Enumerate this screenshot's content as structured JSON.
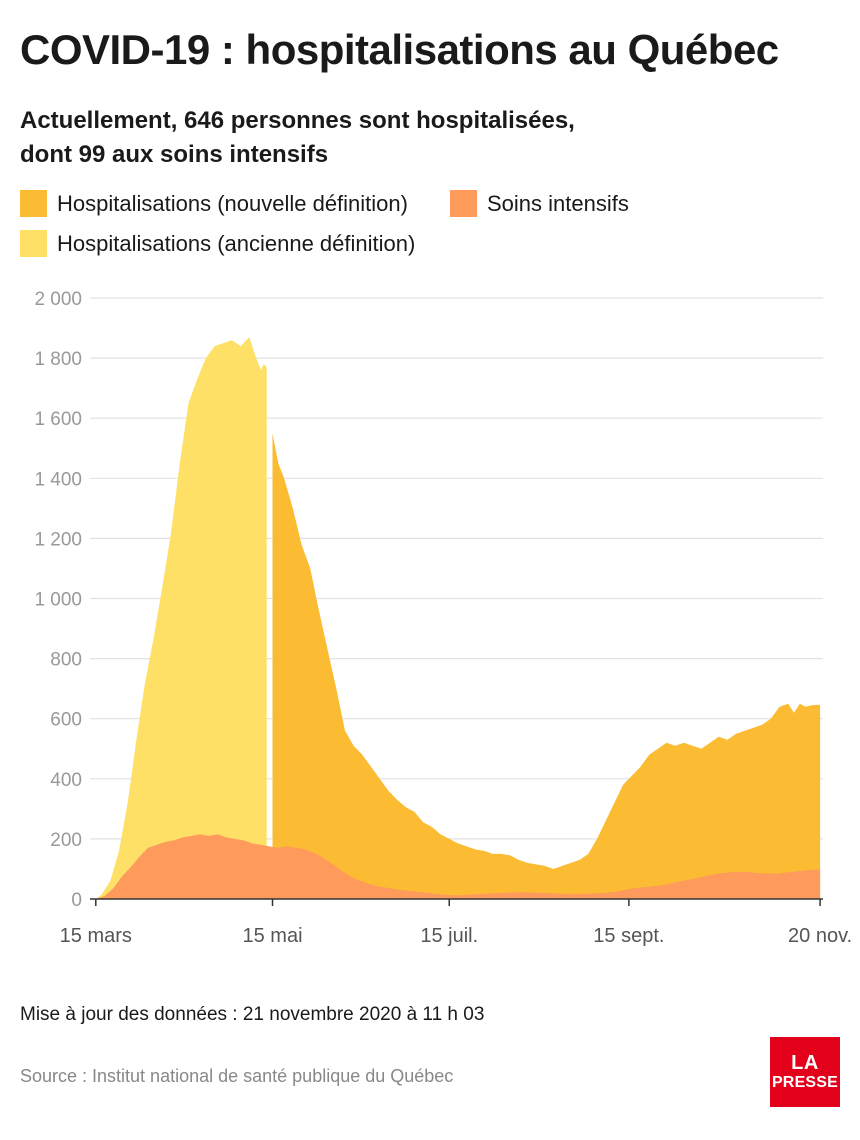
{
  "header": {
    "title": "COVID-19 : hospitalisations au Québec",
    "subtitle_line1": "Actuellement, 646 personnes sont hospitalisées,",
    "subtitle_line2": "dont 99 aux soins intensifs"
  },
  "legend": {
    "items": [
      {
        "label": "Hospitalisations (nouvelle définition)",
        "color": "#fbbc33"
      },
      {
        "label": "Soins intensifs",
        "color": "#fd9a5c"
      },
      {
        "label": "Hospitalisations (ancienne définition)",
        "color": "#fde065"
      }
    ]
  },
  "chart_data": {
    "type": "area",
    "title": "COVID-19 : hospitalisations au Québec",
    "x_unit": "days since 2020-03-15",
    "y_ticks": [
      0,
      200,
      400,
      600,
      800,
      1000,
      1200,
      1400,
      1600,
      1800,
      2000
    ],
    "y_tick_labels": [
      "0",
      "200",
      "400",
      "600",
      "800",
      "1 000",
      "1 200",
      "1 400",
      "1 600",
      "1 800",
      "2 000"
    ],
    "ylim": [
      0,
      2000
    ],
    "xlim": [
      -2,
      251
    ],
    "x_ticks": [
      0,
      61,
      122,
      184,
      250
    ],
    "x_tick_labels": [
      "15 mars",
      "15 mai",
      "15 juil.",
      "15 sept.",
      "20 nov."
    ],
    "grid": true,
    "colors": {
      "old": "#fde065",
      "new": "#fbbc33",
      "icu": "#fd9a5c",
      "grid": "#e2e2e2",
      "axis": "#333333",
      "tick_label": "#999999",
      "x_label": "#555555"
    },
    "series": [
      {
        "name": "Hospitalisations (ancienne définition)",
        "x": [
          0,
          2,
          5,
          8,
          11,
          14,
          17,
          20,
          23,
          26,
          29,
          32,
          35,
          38,
          41,
          44,
          47,
          50,
          53,
          55,
          57,
          58,
          59
        ],
        "values": [
          0,
          15,
          60,
          160,
          320,
          530,
          720,
          870,
          1040,
          1220,
          1450,
          1650,
          1730,
          1800,
          1840,
          1850,
          1860,
          1840,
          1870,
          1810,
          1760,
          1780,
          1770
        ]
      },
      {
        "name": "Hospitalisations (nouvelle définition)",
        "x": [
          61,
          63,
          65,
          68,
          71,
          74,
          77,
          80,
          83,
          86,
          89,
          92,
          95,
          98,
          101,
          104,
          107,
          110,
          113,
          116,
          119,
          122,
          125,
          128,
          131,
          134,
          137,
          140,
          143,
          146,
          149,
          152,
          155,
          158,
          161,
          164,
          167,
          170,
          173,
          176,
          179,
          182,
          185,
          188,
          191,
          194,
          197,
          200,
          203,
          206,
          209,
          212,
          215,
          218,
          221,
          224,
          227,
          230,
          233,
          236,
          239,
          241,
          243,
          245,
          247,
          249,
          250
        ],
        "values": [
          1550,
          1450,
          1400,
          1300,
          1180,
          1100,
          960,
          830,
          700,
          560,
          510,
          480,
          440,
          400,
          360,
          330,
          305,
          290,
          255,
          240,
          215,
          200,
          185,
          175,
          165,
          160,
          150,
          150,
          145,
          130,
          120,
          115,
          110,
          100,
          110,
          120,
          130,
          150,
          200,
          260,
          320,
          380,
          410,
          440,
          480,
          500,
          520,
          510,
          520,
          510,
          500,
          520,
          540,
          530,
          550,
          560,
          570,
          580,
          600,
          640,
          650,
          620,
          650,
          640,
          645,
          646,
          646
        ]
      },
      {
        "name": "Soins intensifs",
        "x": [
          0,
          3,
          6,
          9,
          12,
          15,
          18,
          21,
          24,
          27,
          30,
          33,
          36,
          39,
          42,
          45,
          48,
          51,
          54,
          57,
          60,
          63,
          66,
          69,
          72,
          75,
          78,
          81,
          84,
          87,
          90,
          93,
          96,
          99,
          102,
          105,
          110,
          115,
          120,
          125,
          130,
          135,
          140,
          145,
          150,
          155,
          160,
          165,
          170,
          175,
          180,
          185,
          190,
          195,
          200,
          205,
          210,
          215,
          220,
          225,
          230,
          235,
          240,
          245,
          250
        ],
        "values": [
          0,
          10,
          35,
          75,
          105,
          140,
          170,
          180,
          190,
          195,
          205,
          210,
          215,
          210,
          215,
          205,
          200,
          195,
          185,
          180,
          175,
          170,
          175,
          170,
          165,
          155,
          140,
          120,
          100,
          80,
          65,
          55,
          45,
          40,
          35,
          30,
          25,
          20,
          15,
          12,
          15,
          18,
          20,
          22,
          22,
          20,
          18,
          16,
          18,
          20,
          25,
          35,
          40,
          45,
          55,
          65,
          75,
          85,
          90,
          90,
          85,
          85,
          90,
          95,
          99
        ]
      }
    ]
  },
  "footer": {
    "updated": "Mise à jour des données : 21 novembre 2020 à 11 h 03",
    "source": "Source : Institut national de santé publique du Québec",
    "logo_line1": "LA",
    "logo_line2": "PRESSE"
  }
}
